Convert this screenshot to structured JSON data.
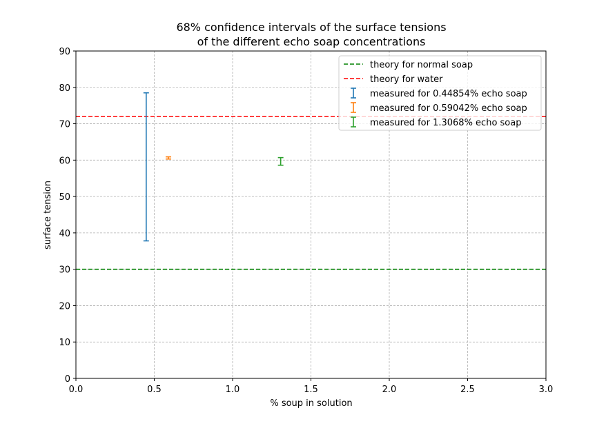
{
  "chart_data": {
    "type": "errorbar",
    "title": [
      "68% confidence intervals of the surface tensions",
      "of the different echo soap concentrations"
    ],
    "xlabel": "% soup in solution",
    "ylabel": "surface tension",
    "xlim": [
      0.0,
      3.0
    ],
    "ylim": [
      0,
      90
    ],
    "x_ticks": [
      "0.0",
      "0.5",
      "1.0",
      "1.5",
      "2.0",
      "2.5",
      "3.0"
    ],
    "y_ticks": [
      "0",
      "10",
      "20",
      "30",
      "40",
      "50",
      "60",
      "70",
      "80",
      "90"
    ],
    "grid": true,
    "legend_position": "top-right",
    "reference_lines": [
      {
        "name": "theory for normal soap",
        "y": 30,
        "color": "#008000",
        "style": "dashed"
      },
      {
        "name": "theory for water",
        "y": 72,
        "color": "#ff0000",
        "style": "dashed"
      }
    ],
    "series": [
      {
        "name": "measured for 0.44854% echo soap",
        "x": 0.44854,
        "y_low": 37.8,
        "y_high": 78.5,
        "color": "#1f77b4"
      },
      {
        "name": "measured for 0.59042% echo soap",
        "x": 0.59042,
        "y_low": 60.3,
        "y_high": 60.9,
        "color": "#ff7f0e"
      },
      {
        "name": "measured for 1.3068% echo soap",
        "x": 1.3068,
        "y_low": 58.6,
        "y_high": 60.7,
        "color": "#2ca02c"
      }
    ]
  }
}
